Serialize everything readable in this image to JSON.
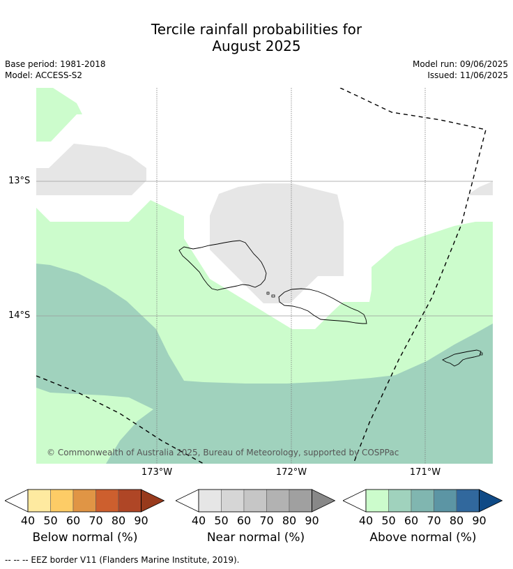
{
  "title": {
    "line1": "Tercile rainfall probabilities for",
    "line2": "August 2025"
  },
  "meta": {
    "base_period": "Base period: 1981-2018",
    "model": "Model: ACCESS-S2",
    "model_run": "Model run: 09/06/2025",
    "issued": "Issued: 11/06/2025"
  },
  "map": {
    "lat_labels": [
      "13°S",
      "14°S"
    ],
    "lon_labels": [
      "173°W",
      "172°W",
      "171°W"
    ],
    "copyright": "© Commonwealth of Australia 2025, Bureau of Meteorology, supported by COSPPac",
    "colors": {
      "near_40": "#e6e6e6",
      "above_40": "#ccfccc",
      "above_50": "#a0d2bd",
      "coast": "#000000",
      "eez": "#000000"
    }
  },
  "legends": [
    {
      "title": "Below normal (%)",
      "ticks": [
        "40",
        "50",
        "60",
        "70",
        "80",
        "90"
      ],
      "colors": [
        "#ffffff",
        "#feeaa0",
        "#fdcc66",
        "#e09545",
        "#cd5f2e",
        "#af4626",
        "#983a1c"
      ]
    },
    {
      "title": "Near normal (%)",
      "ticks": [
        "40",
        "50",
        "60",
        "70",
        "80",
        "90"
      ],
      "colors": [
        "#ffffff",
        "#e6e6e6",
        "#d6d6d6",
        "#c6c6c6",
        "#b2b2b2",
        "#a0a0a0",
        "#888888"
      ]
    },
    {
      "title": "Above normal (%)",
      "ticks": [
        "40",
        "50",
        "60",
        "70",
        "80",
        "90"
      ],
      "colors": [
        "#ffffff",
        "#ccfccc",
        "#a0d2bd",
        "#80b6b0",
        "#5c95a4",
        "#31689d",
        "#0f4a86"
      ]
    }
  ],
  "footnote": "--  --  -- EEZ border V11 (Flanders Marine Institute, 2019)."
}
